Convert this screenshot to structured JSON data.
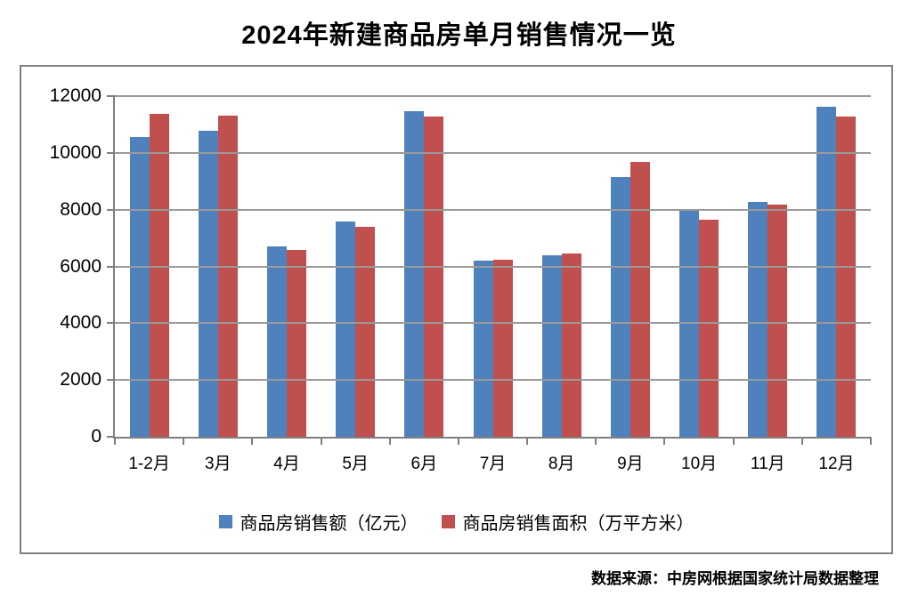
{
  "title": "2024年新建商品房单月销售情况一览",
  "source_note": "数据来源：中房网根据国家统计局数据整理",
  "colors": {
    "series_blue": "#4F81BD",
    "series_red": "#C0504D",
    "gridline": "#9A9A9A",
    "axis": "#7F7F7F",
    "frame_border": "#7F7F7F",
    "text": "#000000"
  },
  "chart_data": {
    "type": "bar",
    "title": "2024年新建商品房单月销售情况一览",
    "categories": [
      "1-2月",
      "3月",
      "4月",
      "5月",
      "6月",
      "7月",
      "8月",
      "9月",
      "10月",
      "11月",
      "12月"
    ],
    "series": [
      {
        "name": "商品房销售额（亿元）",
        "color": "#4F81BD",
        "values": [
          10566,
          10789,
          6712,
          7598,
          11468,
          6197,
          6393,
          9157,
          7975,
          8270,
          11625
        ]
      },
      {
        "name": "商品房销售面积（万平方米）",
        "color": "#C0504D",
        "values": [
          11369,
          11299,
          6584,
          7390,
          11274,
          6233,
          6453,
          9682,
          7646,
          8188,
          11267
        ]
      }
    ],
    "xlabel": "",
    "ylabel": "",
    "ylim": [
      0,
      12000
    ],
    "y_ticks": [
      0,
      2000,
      4000,
      6000,
      8000,
      10000,
      12000
    ],
    "grid": true,
    "legend_position": "bottom-inside"
  }
}
